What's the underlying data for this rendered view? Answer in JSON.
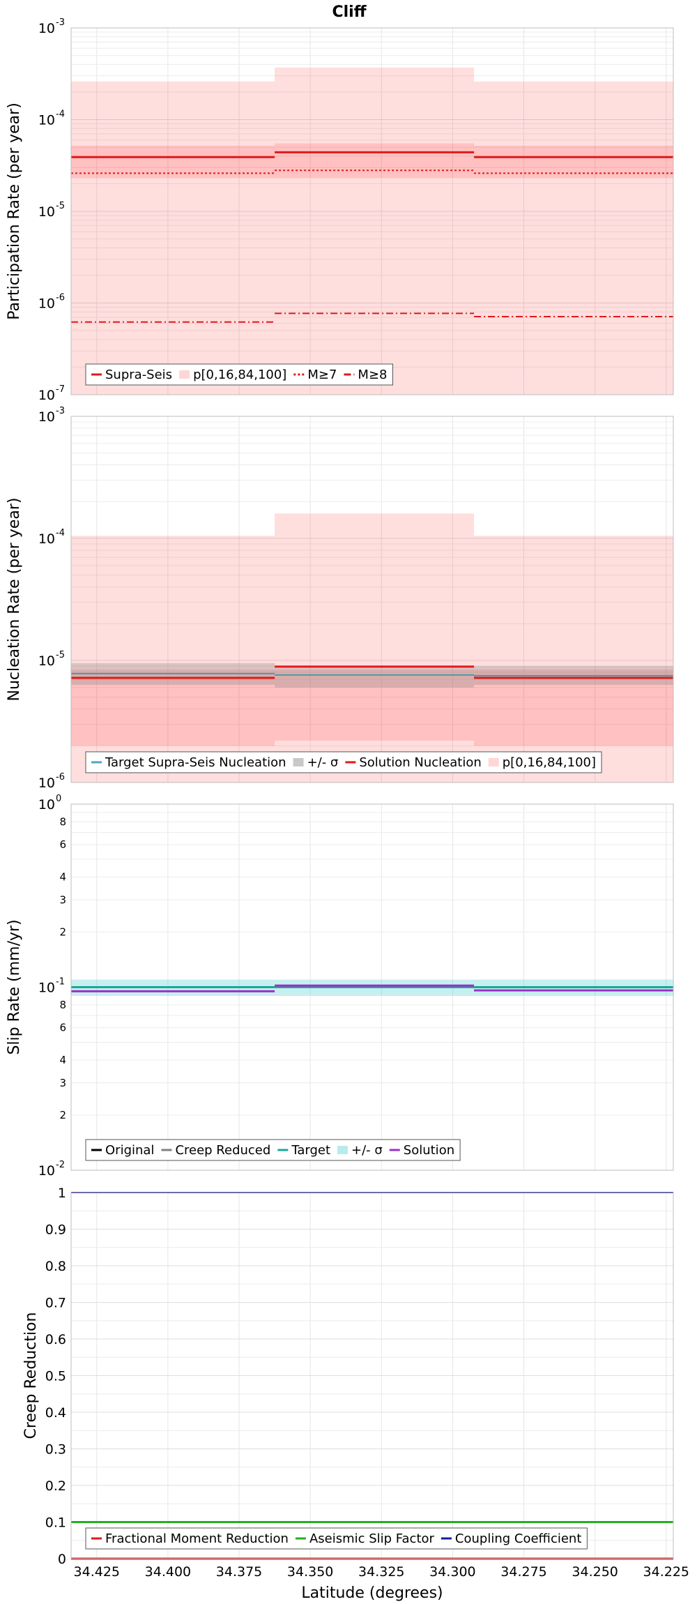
{
  "chart_data": {
    "title": "Cliff",
    "xlabel": "Latitude (degrees)",
    "x_range": [
      34.434,
      34.2225
    ],
    "x_ticks": [
      34.425,
      34.4,
      34.375,
      34.35,
      34.325,
      34.3,
      34.275,
      34.25,
      34.225
    ],
    "x_tick_labels": [
      "34.425",
      "34.400",
      "34.375",
      "34.350",
      "34.325",
      "34.300",
      "34.275",
      "34.250",
      "34.225"
    ],
    "segments": [
      [
        34.434,
        34.3625
      ],
      [
        34.3625,
        34.2925
      ],
      [
        34.2925,
        34.2225
      ]
    ],
    "panels": [
      {
        "id": "participation",
        "type": "step",
        "scale": "log",
        "ylabel": "Participation Rate (per year)",
        "ylim": [
          1e-07,
          0.001
        ],
        "yticks": [
          {
            "v": 0.001,
            "base": "10",
            "exp": "-3"
          },
          {
            "v": 0.0001,
            "base": "10",
            "exp": "-4"
          },
          {
            "v": 1e-05,
            "base": "10",
            "exp": "-5"
          },
          {
            "v": 1e-06,
            "base": "10",
            "exp": "-6"
          },
          {
            "v": 1e-07,
            "base": "10",
            "exp": "-7"
          }
        ],
        "bands": [
          {
            "name": "p[0,16,84,100] (outer)",
            "color": "#ff0000",
            "opacity": 0.13,
            "lower": [
              1e-07,
              1e-07,
              1e-07
            ],
            "upper": [
              0.00026,
              0.00037,
              0.00026
            ]
          },
          {
            "name": "p[0,16,84,100] (inner)",
            "color": "#ff0000",
            "opacity": 0.13,
            "lower": [
              2.3e-05,
              2.3e-05,
              2.3e-05
            ],
            "upper": [
              5.2e-05,
              5.5e-05,
              5.2e-05
            ]
          }
        ],
        "series": [
          {
            "name": "Supra-Seis",
            "color": "#e0191b",
            "width": 3,
            "dash": "",
            "values": [
              3.9e-05,
              4.4e-05,
              3.9e-05
            ]
          },
          {
            "name": "M≥7",
            "color": "#e0191b",
            "width": 2,
            "dash": "3,3",
            "values": [
              2.6e-05,
              2.8e-05,
              2.6e-05
            ]
          },
          {
            "name": "M≥8",
            "color": "#e0191b",
            "width": 2,
            "dash": "10,4,2,4",
            "values": [
              6.2e-07,
              7.7e-07,
              7.1e-07
            ]
          }
        ],
        "legend": [
          {
            "label": "Supra-Seis",
            "kind": "line",
            "color": "#e0191b",
            "dash": ""
          },
          {
            "label": "p[0,16,84,100]",
            "kind": "patch",
            "color": "#ffd6d6",
            "dash": ""
          },
          {
            "label": "M≥7",
            "kind": "line",
            "color": "#e0191b",
            "dash": "3,3"
          },
          {
            "label": "M≥8",
            "kind": "line",
            "color": "#e0191b",
            "dash": "10,4,2,4"
          }
        ]
      },
      {
        "id": "nucleation",
        "type": "step",
        "scale": "log",
        "ylabel": "Nucleation Rate (per year)",
        "ylim": [
          1e-06,
          0.001
        ],
        "yticks": [
          {
            "v": 0.001,
            "base": "10",
            "exp": "-3"
          },
          {
            "v": 0.0001,
            "base": "10",
            "exp": "-4"
          },
          {
            "v": 1e-05,
            "base": "10",
            "exp": "-5"
          },
          {
            "v": 1e-06,
            "base": "10",
            "exp": "-6"
          }
        ],
        "bands": [
          {
            "name": "p[0,16,84,100] (outer)",
            "color": "#ff0000",
            "opacity": 0.13,
            "lower": [
              1e-06,
              1e-06,
              1e-06
            ],
            "upper": [
              0.000105,
              0.00016,
              0.000105
            ]
          },
          {
            "name": "p[0,16,84,100] (inner)",
            "color": "#ff0000",
            "opacity": 0.13,
            "lower": [
              2e-06,
              2.2e-06,
              2e-06
            ],
            "upper": [
              8.4e-06,
              8.4e-06,
              8.4e-06
            ]
          },
          {
            "name": "+/- σ",
            "color": "#808080",
            "opacity": 0.3,
            "lower": [
              6.3e-06,
              6e-06,
              6.3e-06
            ],
            "upper": [
              9.5e-06,
              9e-06,
              9e-06
            ]
          }
        ],
        "series": [
          {
            "name": "Solution Nucleation",
            "color": "#e0191b",
            "width": 3,
            "dash": "",
            "values": [
              7.2e-06,
              8.9e-06,
              7.2e-06
            ]
          },
          {
            "name": "Target Supra-Seis Nucleation",
            "color": "#4a9aa8",
            "width": 2,
            "dash": "",
            "values": [
              7.8e-06,
              7.6e-06,
              7.5e-06
            ]
          }
        ],
        "legend": [
          {
            "label": "Target Supra-Seis Nucleation",
            "kind": "line",
            "color": "#4aa8c0",
            "dash": ""
          },
          {
            "label": "+/- σ",
            "kind": "patch",
            "color": "#c8c8c8",
            "dash": ""
          },
          {
            "label": "Solution Nucleation",
            "kind": "line",
            "color": "#e0191b",
            "dash": ""
          },
          {
            "label": "p[0,16,84,100]",
            "kind": "patch",
            "color": "#ffd6d6",
            "dash": ""
          }
        ]
      },
      {
        "id": "slip",
        "type": "step",
        "scale": "log",
        "ylabel": "Slip Rate (mm/yr)",
        "ylim": [
          0.01,
          1
        ],
        "yticks": [
          {
            "v": 1,
            "base": "10",
            "exp": "0"
          },
          {
            "v": 0.1,
            "base": "10",
            "exp": "-1"
          },
          {
            "v": 0.01,
            "base": "10",
            "exp": "-2"
          }
        ],
        "minor_labels": [
          {
            "v": 0.8,
            "label": "8"
          },
          {
            "v": 0.6,
            "label": "6"
          },
          {
            "v": 0.4,
            "label": "4"
          },
          {
            "v": 0.3,
            "label": "3"
          },
          {
            "v": 0.2,
            "label": "2"
          },
          {
            "v": 0.08,
            "label": "8"
          },
          {
            "v": 0.06,
            "label": "6"
          },
          {
            "v": 0.04,
            "label": "4"
          },
          {
            "v": 0.03,
            "label": "3"
          },
          {
            "v": 0.02,
            "label": "2"
          }
        ],
        "bands": [
          {
            "name": "+/- σ",
            "color": "#38c4c4",
            "opacity": 0.28,
            "lower": [
              0.09,
              0.09,
              0.09
            ],
            "upper": [
              0.11,
              0.11,
              0.11
            ]
          }
        ],
        "series": [
          {
            "name": "Target",
            "color": "#18a898",
            "width": 3,
            "dash": "",
            "values": [
              0.1,
              0.1,
              0.1
            ]
          },
          {
            "name": "Solution",
            "color": "#9b30c8",
            "width": 3,
            "dash": "",
            "values": [
              0.095,
              0.102,
              0.096
            ]
          }
        ],
        "legend": [
          {
            "label": "Original",
            "kind": "line",
            "color": "#000000",
            "dash": ""
          },
          {
            "label": "Creep Reduced",
            "kind": "line",
            "color": "#808080",
            "dash": ""
          },
          {
            "label": "Target",
            "kind": "line",
            "color": "#18a898",
            "dash": ""
          },
          {
            "label": "+/- σ",
            "kind": "patch",
            "color": "#b8ecec",
            "dash": ""
          },
          {
            "label": "Solution",
            "kind": "line",
            "color": "#9b30c8",
            "dash": ""
          }
        ]
      },
      {
        "id": "creep",
        "type": "step",
        "scale": "linear",
        "ylabel": "Creep Reduction",
        "ylim": [
          0,
          1
        ],
        "yticks": [
          {
            "v": 1,
            "label": "1"
          },
          {
            "v": 0.9,
            "label": "0.9"
          },
          {
            "v": 0.8,
            "label": "0.8"
          },
          {
            "v": 0.7,
            "label": "0.7"
          },
          {
            "v": 0.6,
            "label": "0.6"
          },
          {
            "v": 0.5,
            "label": "0.5"
          },
          {
            "v": 0.4,
            "label": "0.4"
          },
          {
            "v": 0.3,
            "label": "0.3"
          },
          {
            "v": 0.2,
            "label": "0.2"
          },
          {
            "v": 0.1,
            "label": "0.1"
          },
          {
            "v": 0,
            "label": "0"
          }
        ],
        "bands": [],
        "series": [
          {
            "name": "Fractional Moment Reduction",
            "color": "#e0191b",
            "width": 3,
            "dash": "",
            "values": [
              0,
              0,
              0
            ]
          },
          {
            "name": "Coupling Coefficient",
            "color": "#1a1aa0",
            "width": 2,
            "dash": "",
            "values": [
              1,
              1,
              1
            ]
          },
          {
            "name": "Aseismic Slip Factor",
            "color": "#22b022",
            "width": 3,
            "dash": "",
            "values": [
              0.1,
              0.1,
              0.1
            ]
          }
        ],
        "legend": [
          {
            "label": "Fractional Moment Reduction",
            "kind": "line",
            "color": "#e0191b",
            "dash": ""
          },
          {
            "label": "Aseismic Slip Factor",
            "kind": "line",
            "color": "#22b022",
            "dash": ""
          },
          {
            "label": "Coupling Coefficient",
            "kind": "line",
            "color": "#1a1aa0",
            "dash": ""
          }
        ]
      }
    ]
  }
}
